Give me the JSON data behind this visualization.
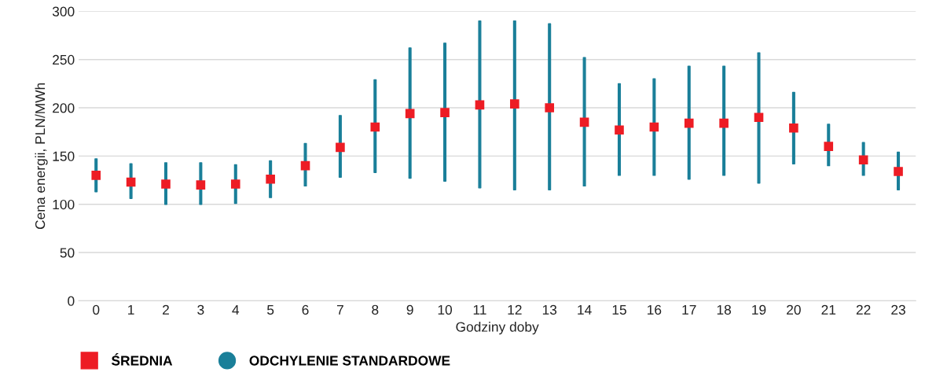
{
  "chart_data": {
    "type": "bar",
    "xlabel": "Godziny doby",
    "ylabel": "Cena energii, PLN/MWh",
    "categories": [
      "0",
      "1",
      "2",
      "3",
      "4",
      "5",
      "6",
      "7",
      "8",
      "9",
      "10",
      "11",
      "12",
      "13",
      "14",
      "15",
      "16",
      "17",
      "18",
      "19",
      "20",
      "21",
      "22",
      "23"
    ],
    "series": [
      {
        "name": "ŚREDNIA",
        "type": "scatter",
        "marker": "square",
        "color": "#ed1c24",
        "values": [
          130,
          123,
          121,
          120,
          121,
          126,
          140,
          159,
          180,
          194,
          195,
          203,
          204,
          200,
          185,
          177,
          180,
          184,
          184,
          190,
          179,
          160,
          146,
          134
        ]
      },
      {
        "name": "ODCHYLENIE STANDARDOWE",
        "color": "#1a7f99",
        "base": [
          113,
          106,
          100,
          100,
          101,
          107,
          119,
          128,
          133,
          127,
          124,
          117,
          115,
          115,
          119,
          130,
          130,
          126,
          130,
          122,
          142,
          140,
          130,
          115
        ],
        "values": [
          34,
          36,
          43,
          43,
          40,
          38,
          44,
          64,
          96,
          135,
          143,
          173,
          175,
          172,
          133,
          95,
          100,
          117,
          113,
          135,
          74,
          43,
          34,
          39
        ]
      }
    ],
    "ylim": [
      0,
      300
    ],
    "yticks": [
      0,
      50,
      100,
      150,
      200,
      250,
      300
    ],
    "grid": "y",
    "legend": "bottom left"
  }
}
